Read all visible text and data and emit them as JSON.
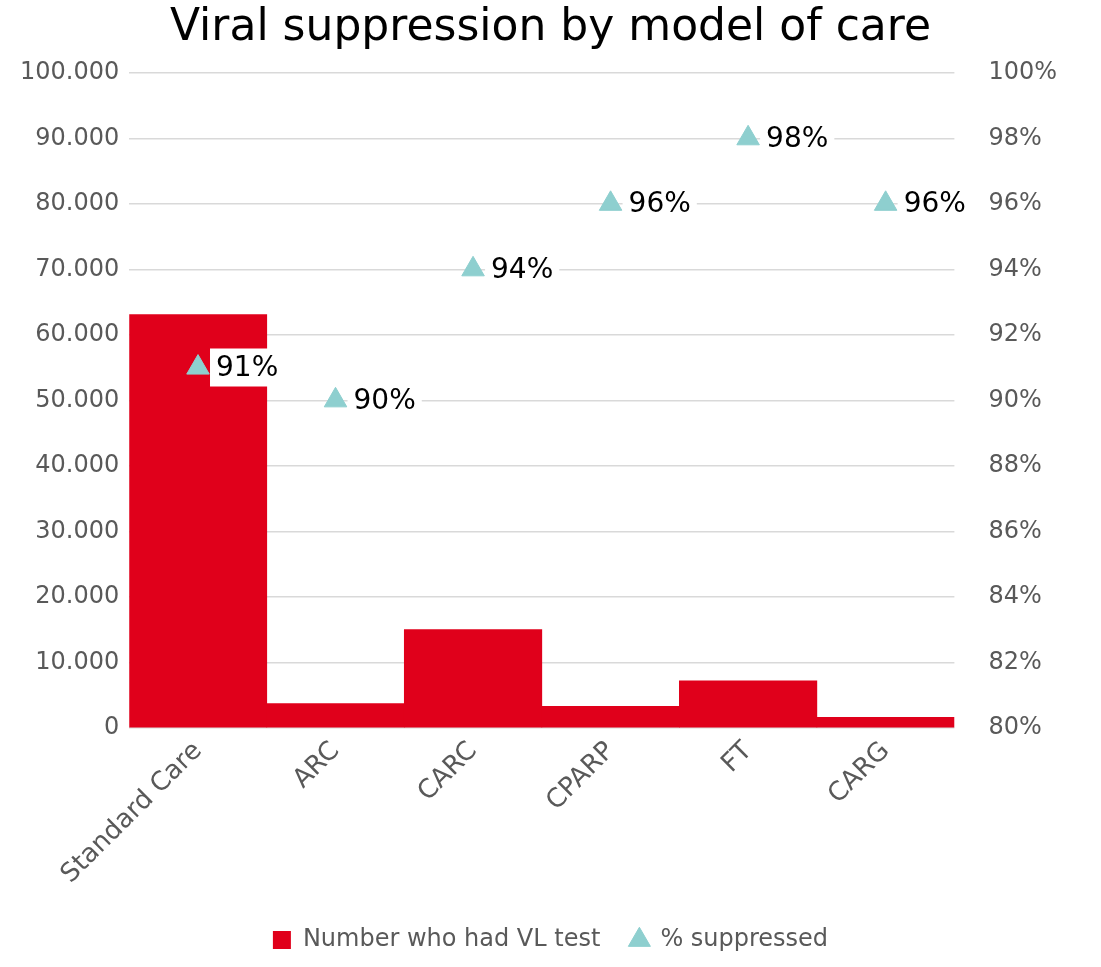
{
  "chart_data": {
    "type": "bar",
    "title": "Viral suppression by model of care",
    "categories": [
      "Standard Care",
      "ARC",
      "CARC",
      "CPARP",
      "FT",
      "CARG"
    ],
    "series": [
      {
        "name": "Number who had VL test",
        "color": "#e0001b",
        "values": [
          63100,
          3700,
          15000,
          3300,
          7200,
          1600
        ]
      },
      {
        "name": "% suppressed",
        "type": "scatter",
        "axis": "y2",
        "marker": "triangle",
        "color": "#8ecfcf",
        "values": [
          91,
          90,
          94,
          96,
          98,
          96
        ],
        "value_labels": [
          "91%",
          "90%",
          "94%",
          "96%",
          "98%",
          "96%"
        ]
      }
    ],
    "ylim": [
      0,
      100000
    ],
    "yticks": [
      {
        "value": 0,
        "label": "0"
      },
      {
        "value": 10000,
        "label": "10.000"
      },
      {
        "value": 20000,
        "label": "20.000"
      },
      {
        "value": 30000,
        "label": "30.000"
      },
      {
        "value": 40000,
        "label": "40.000"
      },
      {
        "value": 50000,
        "label": "50.000"
      },
      {
        "value": 60000,
        "label": "60.000"
      },
      {
        "value": 70000,
        "label": "70.000"
      },
      {
        "value": 80000,
        "label": "80.000"
      },
      {
        "value": 90000,
        "label": "90.000"
      },
      {
        "value": 100000,
        "label": "100.000"
      }
    ],
    "y2lim": [
      80,
      100
    ],
    "y2ticks": [
      {
        "value": 80,
        "label": "80%"
      },
      {
        "value": 82,
        "label": "82%"
      },
      {
        "value": 84,
        "label": "84%"
      },
      {
        "value": 86,
        "label": "86%"
      },
      {
        "value": 88,
        "label": "88%"
      },
      {
        "value": 90,
        "label": "90%"
      },
      {
        "value": 92,
        "label": "92%"
      },
      {
        "value": 94,
        "label": "94%"
      },
      {
        "value": 96,
        "label": "96%"
      },
      {
        "value": 98,
        "label": "98%"
      },
      {
        "value": 100,
        "label": "100%"
      }
    ],
    "grid": "y",
    "legend": "bottom"
  }
}
